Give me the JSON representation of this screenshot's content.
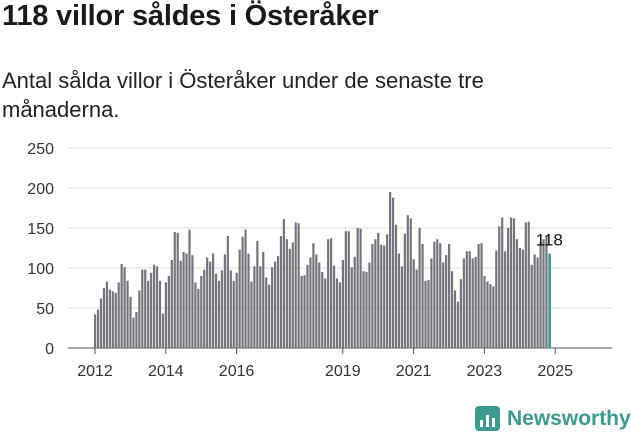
{
  "header": {
    "title": "118 villor såldes i Österåker",
    "subtitle": "Antal sålda villor i Österåker under de senaste tre månaderna."
  },
  "branding": {
    "logo_text": "Newsworthy",
    "logo_icon": "bar-chart-speech-icon"
  },
  "colors": {
    "bar": "#76747a",
    "highlight": "#2a9d8f",
    "grid": "#d9d9d9",
    "brand": "#3a9b8e"
  },
  "chart_data": {
    "type": "bar",
    "title": "118 villor såldes i Österåker",
    "xlabel": "",
    "ylabel": "",
    "ylim": [
      0,
      250
    ],
    "yticks": [
      0,
      50,
      100,
      150,
      200,
      250
    ],
    "xticks": [
      "2012",
      "2014",
      "2016",
      "2019",
      "2021",
      "2023",
      "2025"
    ],
    "grid": true,
    "annotations": [
      {
        "label": "118",
        "target": "last"
      }
    ],
    "value_note": "Rolling 3-month totals, one bar per month, values estimated from gridlines",
    "start_month": "2012-01",
    "values": [
      42,
      48,
      62,
      75,
      83,
      73,
      71,
      69,
      82,
      105,
      101,
      84,
      64,
      38,
      45,
      72,
      98,
      98,
      84,
      94,
      104,
      102,
      84,
      43,
      82,
      90,
      110,
      145,
      144,
      109,
      120,
      118,
      148,
      116,
      82,
      74,
      90,
      98,
      113,
      108,
      118,
      93,
      84,
      97,
      117,
      140,
      97,
      84,
      94,
      123,
      139,
      148,
      118,
      83,
      102,
      134,
      102,
      120,
      88,
      79,
      101,
      108,
      115,
      140,
      161,
      136,
      124,
      132,
      157,
      156,
      90,
      91,
      104,
      113,
      131,
      117,
      107,
      95,
      87,
      136,
      137,
      103,
      87,
      82,
      110,
      146,
      146,
      101,
      114,
      150,
      149,
      96,
      95,
      107,
      130,
      136,
      144,
      129,
      128,
      142,
      195,
      188,
      154,
      118,
      102,
      143,
      166,
      162,
      111,
      98,
      150,
      130,
      84,
      85,
      112,
      133,
      136,
      131,
      107,
      116,
      130,
      96,
      72,
      58,
      86,
      112,
      121,
      121,
      112,
      114,
      130,
      131,
      90,
      83,
      80,
      77,
      122,
      152,
      163,
      121,
      150,
      163,
      162,
      136,
      125,
      123,
      157,
      158,
      104,
      117,
      113,
      133,
      136,
      140,
      118
    ]
  }
}
